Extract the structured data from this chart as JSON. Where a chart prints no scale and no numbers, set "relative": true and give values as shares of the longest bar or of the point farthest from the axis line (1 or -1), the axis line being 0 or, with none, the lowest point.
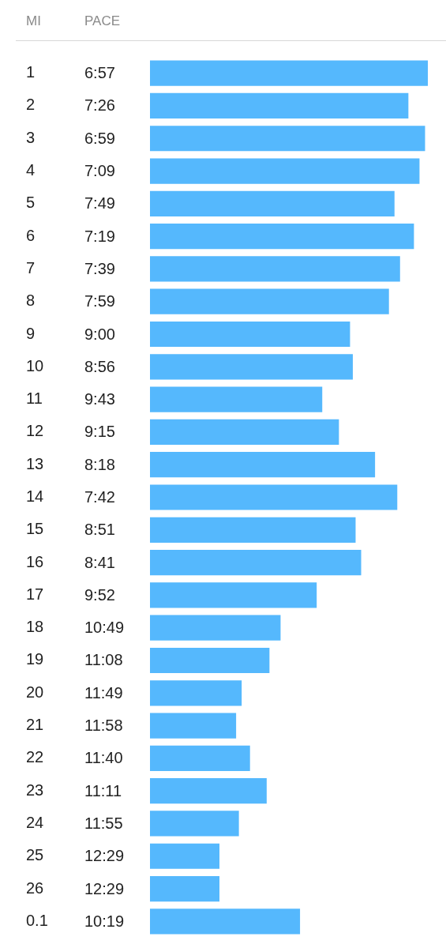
{
  "chart_data": {
    "type": "bar",
    "orientation": "horizontal",
    "relative": true,
    "ylabel": "MI",
    "categories": [
      "1",
      "2",
      "3",
      "4",
      "5",
      "6",
      "7",
      "8",
      "9",
      "10",
      "11",
      "12",
      "13",
      "14",
      "15",
      "16",
      "17",
      "18",
      "19",
      "20",
      "21",
      "22",
      "23",
      "24",
      "25",
      "26",
      "0.1"
    ],
    "values": [
      1,
      0.93,
      0.99,
      0.97,
      0.88,
      0.95,
      0.9,
      0.86,
      0.72,
      0.73,
      0.62,
      0.68,
      0.81,
      0.89,
      0.74,
      0.76,
      0.6,
      0.47,
      0.43,
      0.33,
      0.31,
      0.36,
      0.42,
      0.32,
      0.25,
      0.25,
      0.54
    ],
    "annotations": [
      "PACE",
      "6:57",
      "7:26",
      "6:59",
      "7:09",
      "7:49",
      "7:19",
      "7:39",
      "7:59",
      "9:00",
      "8:56",
      "9:43",
      "9:15",
      "8:18",
      "7:42",
      "8:51",
      "8:41",
      "9:52",
      "10:49",
      "11:08",
      "11:49",
      "11:58",
      "11:40",
      "11:11",
      "11:55",
      "12:29",
      "12:29",
      "10:19"
    ],
    "color": "#55b8fd"
  }
}
